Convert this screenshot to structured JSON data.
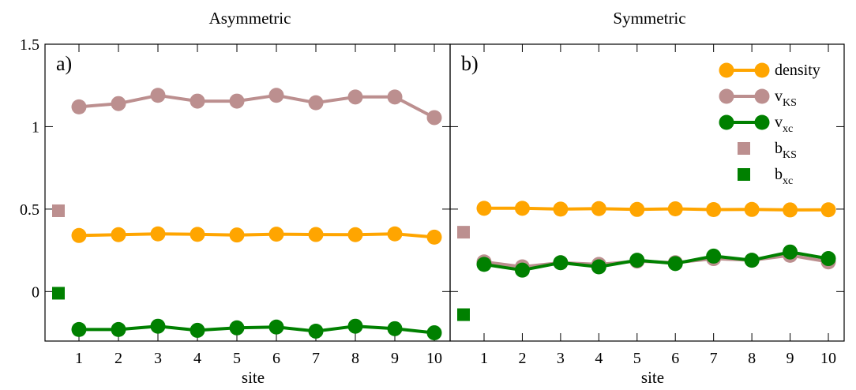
{
  "colors": {
    "density": "#ffa500",
    "vKS": "#bc8f8f",
    "vxc": "#008000",
    "bKS": "#bc8f8f",
    "bxc": "#008000"
  },
  "legend": [
    {
      "key": "density",
      "label": "density",
      "sub": "",
      "marker": "line-circle"
    },
    {
      "key": "vKS",
      "label": "v",
      "sub": "KS",
      "marker": "line-circle"
    },
    {
      "key": "vxc",
      "label": "v",
      "sub": "xc",
      "marker": "line-circle"
    },
    {
      "key": "bKS",
      "label": "b",
      "sub": "KS",
      "marker": "square"
    },
    {
      "key": "bxc",
      "label": "b",
      "sub": "xc",
      "marker": "square"
    }
  ],
  "chart_data": [
    {
      "type": "line",
      "title": "Asymmetric",
      "panel_label": "a)",
      "xlabel": "site",
      "ylabel": "",
      "x": [
        1,
        2,
        3,
        4,
        5,
        6,
        7,
        8,
        9,
        10
      ],
      "ylim": [
        -0.3,
        1.5
      ],
      "yticks": [
        0,
        0.5,
        1,
        1.5
      ],
      "ytick_labels": [
        "0",
        "0.5",
        "1",
        "1.5"
      ],
      "series": [
        {
          "key": "density",
          "values": [
            0.34,
            0.345,
            0.35,
            0.347,
            0.343,
            0.348,
            0.346,
            0.345,
            0.35,
            0.33
          ]
        },
        {
          "key": "vKS",
          "values": [
            1.12,
            1.14,
            1.19,
            1.155,
            1.155,
            1.19,
            1.145,
            1.18,
            1.18,
            1.055
          ]
        },
        {
          "key": "vxc",
          "values": [
            -0.23,
            -0.23,
            -0.21,
            -0.235,
            -0.22,
            -0.215,
            -0.24,
            -0.21,
            -0.225,
            -0.25
          ]
        }
      ],
      "boundary": {
        "bKS": 0.49,
        "bxc": -0.01
      },
      "legend": false
    },
    {
      "type": "line",
      "title": "Symmetric",
      "panel_label": "b)",
      "xlabel": "site",
      "ylabel": "",
      "x": [
        1,
        2,
        3,
        4,
        5,
        6,
        7,
        8,
        9,
        10
      ],
      "ylim": [
        -0.3,
        1.5
      ],
      "yticks": [
        0,
        0.5,
        1,
        1.5
      ],
      "ytick_labels": [
        "",
        "",
        "",
        ""
      ],
      "series": [
        {
          "key": "density",
          "values": [
            0.505,
            0.505,
            0.5,
            0.503,
            0.498,
            0.502,
            0.497,
            0.498,
            0.495,
            0.496
          ]
        },
        {
          "key": "vKS",
          "values": [
            0.18,
            0.15,
            0.175,
            0.165,
            0.185,
            0.175,
            0.2,
            0.19,
            0.22,
            0.18
          ]
        },
        {
          "key": "vxc",
          "values": [
            0.165,
            0.13,
            0.175,
            0.15,
            0.19,
            0.17,
            0.215,
            0.19,
            0.24,
            0.2
          ]
        }
      ],
      "boundary": {
        "bKS": 0.36,
        "bxc": -0.14
      },
      "legend": true,
      "legend_position": "top-right"
    }
  ]
}
